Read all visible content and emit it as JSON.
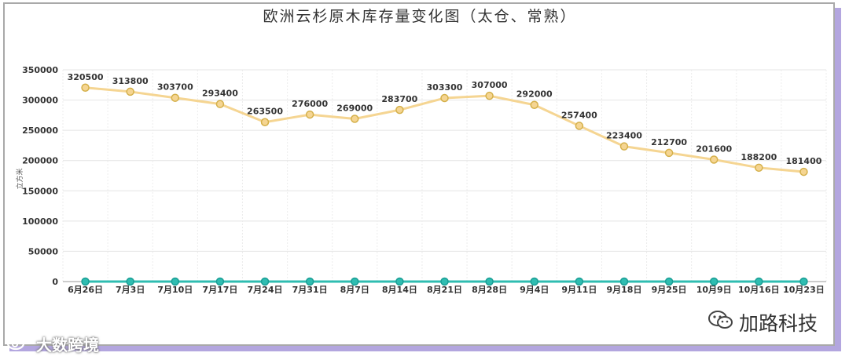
{
  "chart_data": {
    "type": "line",
    "title": "欧洲云杉原木库存量变化图（太仓、常熟）",
    "ylabel": "立方米",
    "xlabel": "",
    "ylim": [
      0,
      350000
    ],
    "yticks": [
      0,
      50000,
      100000,
      150000,
      200000,
      250000,
      300000,
      350000
    ],
    "grid": true,
    "categories": [
      "6月26日",
      "7月3日",
      "7月10日",
      "7月17日",
      "7月24日",
      "7月31日",
      "8月7日",
      "8月14日",
      "8月21日",
      "8月28日",
      "9月4日",
      "9月11日",
      "9月18日",
      "9月25日",
      "10月9日",
      "10月16日",
      "10月23日"
    ],
    "series": [
      {
        "color": "#f5d592",
        "marker_color": "#d4b04a",
        "labels": true,
        "values": [
          320500,
          313800,
          303700,
          293400,
          263500,
          276000,
          269000,
          283700,
          303300,
          307000,
          292000,
          257400,
          223400,
          212700,
          201600,
          188200,
          181400
        ]
      },
      {
        "color": "#2fbdb1",
        "marker_color": "#1a9e95",
        "labels": false,
        "values": [
          0,
          0,
          0,
          0,
          0,
          0,
          0,
          0,
          0,
          0,
          0,
          0,
          0,
          0,
          0,
          0,
          0
        ]
      }
    ]
  },
  "watermarks": {
    "left_text": "大数跨境",
    "left_icon": "weibo-icon",
    "right_text": "加路科技",
    "right_icon": "wechat-icon"
  }
}
